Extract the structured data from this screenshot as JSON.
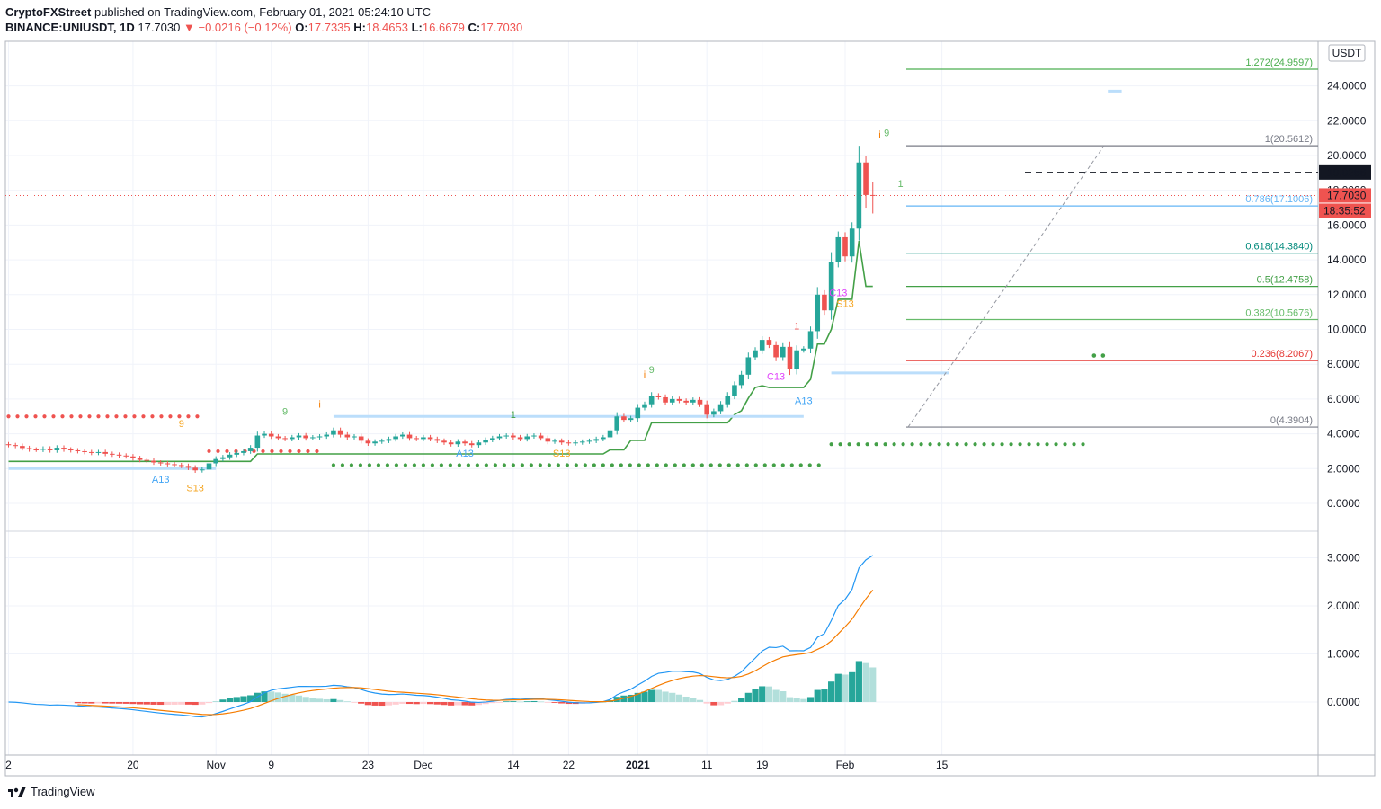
{
  "header": {
    "publisher": "CryptoFXStreet",
    "published_text": " published on TradingView.com, February 01, 2021 05:24:10 UTC",
    "symbol": "BINANCE:UNIUSDT, 1D",
    "last": "17.7030",
    "change": "−0.0216 (−0.12%)",
    "o_label": "O:",
    "o": "17.7335",
    "h_label": "H:",
    "h": "18.4653",
    "l_label": "L:",
    "l": "16.6679",
    "c_label": "C:",
    "c": "17.7030"
  },
  "footer": {
    "brand": "TradingView"
  },
  "colors": {
    "up": "#26a69a",
    "down": "#ef5350",
    "green_line": "#43a047",
    "macd": "#2196f3",
    "signal": "#f57c00",
    "hist_up": "#26a69a",
    "hist_up_light": "#b2dfdb",
    "hist_down": "#ef5350",
    "hist_down_light": "#ffcdd2"
  },
  "chart_data": [
    {
      "type": "candlestick",
      "currency": "USDT",
      "y_ticks": [
        "0.0000",
        "2.0000",
        "4.0000",
        "6.0000",
        "8.0000",
        "10.0000",
        "12.0000",
        "14.0000",
        "16.0000",
        "18.0000",
        "20.0000",
        "22.0000",
        "24.0000"
      ],
      "ylim": [
        -1.0,
        26.5
      ],
      "x_ticks": [
        {
          "label": "2",
          "day": 0
        },
        {
          "label": "20",
          "day": 18
        },
        {
          "label": "Nov",
          "day": 30
        },
        {
          "label": "9",
          "day": 38
        },
        {
          "label": "23",
          "day": 52
        },
        {
          "label": "Dec",
          "day": 60
        },
        {
          "label": "14",
          "day": 73
        },
        {
          "label": "22",
          "day": 81
        },
        {
          "label": "2021",
          "day": 91,
          "bold": true
        },
        {
          "label": "11",
          "day": 101
        },
        {
          "label": "19",
          "day": 109
        },
        {
          "label": "Feb",
          "day": 121
        },
        {
          "label": "15",
          "day": 135
        }
      ],
      "price_labels": {
        "dashed_level": "19.0256",
        "last_price": "17.7030",
        "countdown": "18:35:52"
      },
      "closes": [
        3.35,
        3.3,
        3.18,
        3.1,
        3.08,
        3.15,
        3.05,
        3.2,
        3.1,
        3.05,
        3.0,
        2.95,
        2.9,
        2.95,
        2.85,
        2.8,
        2.75,
        2.7,
        2.6,
        2.5,
        2.45,
        2.35,
        2.3,
        2.25,
        2.2,
        2.15,
        2.05,
        1.9,
        1.95,
        2.3,
        2.55,
        2.65,
        2.8,
        2.9,
        3.0,
        3.2,
        3.9,
        4.0,
        3.85,
        3.75,
        3.7,
        3.8,
        3.9,
        3.75,
        3.8,
        3.85,
        3.95,
        4.2,
        3.95,
        3.8,
        3.85,
        3.6,
        3.45,
        3.55,
        3.6,
        3.7,
        3.85,
        3.95,
        3.75,
        3.7,
        3.8,
        3.7,
        3.6,
        3.5,
        3.4,
        3.55,
        3.45,
        3.35,
        3.5,
        3.65,
        3.75,
        3.85,
        3.9,
        3.8,
        3.7,
        3.85,
        3.9,
        3.75,
        3.55,
        3.6,
        3.5,
        3.45,
        3.5,
        3.55,
        3.6,
        3.7,
        3.8,
        4.2,
        5.0,
        4.8,
        4.9,
        5.5,
        5.7,
        6.2,
        6.1,
        5.8,
        6.0,
        5.9,
        5.8,
        5.95,
        5.7,
        5.1,
        5.3,
        5.7,
        6.2,
        6.8,
        7.4,
        8.4,
        8.8,
        9.4,
        9.1,
        8.4,
        9.0,
        7.7,
        8.8,
        8.9,
        9.9,
        12.0,
        11.1,
        13.9,
        15.3,
        14.2,
        15.8,
        19.6,
        17.73,
        17.7
      ],
      "macd": {
        "macd_line_end": 3.05,
        "signal_line_end": 2.33,
        "y_ticks": [
          "0.0000",
          "1.0000",
          "2.0000",
          "3.0000"
        ],
        "ylim": [
          -0.9,
          3.35
        ]
      },
      "fibonacci": [
        {
          "label": "1.272",
          "value": "24.9597",
          "color": "#4caf50"
        },
        {
          "label": "1",
          "value": "20.5612",
          "color": "#787b86"
        },
        {
          "label": "0.786",
          "value": "17.1006",
          "color": "#64b5f6"
        },
        {
          "label": "0.618",
          "value": "14.3840",
          "color": "#00897b"
        },
        {
          "label": "0.5",
          "value": "12.4758",
          "color": "#43a047"
        },
        {
          "label": "0.382",
          "value": "10.5676",
          "color": "#66bb6a"
        },
        {
          "label": "0.236",
          "value": "8.2067",
          "color": "#e53935"
        },
        {
          "label": "0",
          "value": "4.3904",
          "color": "#787b86"
        }
      ],
      "td_labels": [
        {
          "text": "A13",
          "color": "#42a5f5",
          "day": 22,
          "price": 1.2
        },
        {
          "text": "S13",
          "color": "#f5a623",
          "day": 27,
          "price": 0.7
        },
        {
          "text": "9",
          "color": "#f5a623",
          "day": 25,
          "price": 4.4
        },
        {
          "text": "9",
          "color": "#66bb6a",
          "day": 40,
          "price": 5.1
        },
        {
          "text": "A13",
          "color": "#42a5f5",
          "day": 66,
          "price": 2.7
        },
        {
          "text": "1",
          "color": "#43a047",
          "day": 73,
          "price": 4.9
        },
        {
          "text": "S13",
          "color": "#f5a623",
          "day": 80,
          "price": 2.7
        },
        {
          "text": "9",
          "color": "#66bb6a",
          "day": 93,
          "price": 7.5
        },
        {
          "text": "C13",
          "color": "#e040fb",
          "day": 111,
          "price": 7.1
        },
        {
          "text": "1",
          "color": "#ef5350",
          "day": 114,
          "price": 10.0
        },
        {
          "text": "A13",
          "color": "#42a5f5",
          "day": 115,
          "price": 5.7
        },
        {
          "text": "C13",
          "color": "#e040fb",
          "day": 120,
          "price": 11.9
        },
        {
          "text": "S13",
          "color": "#f5a623",
          "day": 121,
          "price": 11.3
        },
        {
          "text": "9",
          "color": "#66bb6a",
          "day": 127,
          "price": 21.1
        },
        {
          "text": "1",
          "color": "#66bb6a",
          "day": 129,
          "price": 18.2
        }
      ]
    }
  ]
}
